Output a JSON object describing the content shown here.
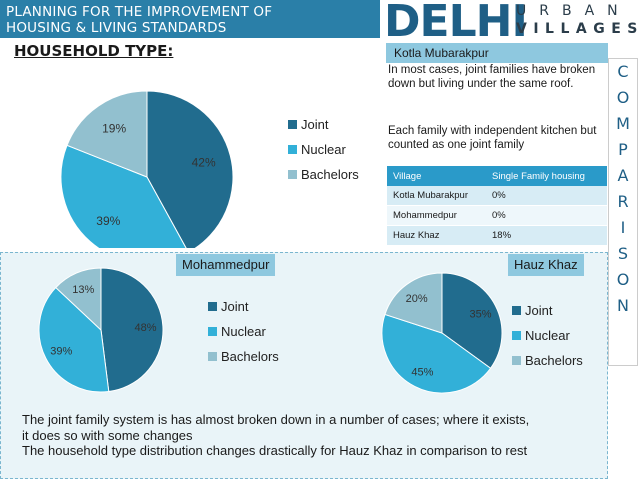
{
  "header": {
    "title_line1": "PLANNING FOR THE IMPROVEMENT OF",
    "title_line2": "HOUSING & LIVING STANDARDS",
    "logo_main": "DELHI",
    "logo_sub1": "URBAN",
    "logo_sub2": "VILLAGES"
  },
  "subtitle": "HOUSEHOLD TYPE:",
  "kotla": {
    "label": "Kotla Mubarakpur",
    "note1": "In most cases, joint families have broken down but living under the same roof.",
    "note2": "Each family with independent kitchen but counted as one joint family"
  },
  "table": {
    "headers": [
      "Village",
      "Single Family housing"
    ],
    "rows": [
      [
        "Kotla Mubarakpur",
        "0%"
      ],
      [
        "Mohammedpur",
        "0%"
      ],
      [
        "Hauz Khaz",
        "18%"
      ]
    ]
  },
  "side_letters": [
    "C",
    "O",
    "M",
    "P",
    "A",
    "R",
    "I",
    "S",
    "O",
    "N"
  ],
  "colors": {
    "joint": "#216c8e",
    "nuclear": "#32b0d8",
    "bachelors": "#92c0cf",
    "header": "#2a7fa8"
  },
  "chart_data": [
    {
      "type": "pie",
      "title": "Kotla Mubarakpur",
      "categories": [
        "Joint",
        "Nuclear",
        "Bachelors"
      ],
      "values": [
        42,
        39,
        19
      ],
      "data_labels": [
        "42%",
        "39%",
        "19%"
      ],
      "legend": "right"
    },
    {
      "type": "pie",
      "title": "Mohammedpur",
      "categories": [
        "Joint",
        "Nuclear",
        "Bachelors"
      ],
      "values": [
        48,
        39,
        13
      ],
      "data_labels": [
        "48%",
        "39%",
        "13%"
      ],
      "legend": "right"
    },
    {
      "type": "pie",
      "title": "Hauz Khaz",
      "categories": [
        "Joint",
        "Nuclear",
        "Bachelors"
      ],
      "values": [
        35,
        45,
        20
      ],
      "data_labels": [
        "35%",
        "45%",
        "20%"
      ],
      "legend": "right"
    }
  ],
  "footer": {
    "line1": "The joint family system is has almost broken down in a number of cases; where it exists,",
    "line2": "it does so with some changes",
    "line3": "The household type distribution changes drastically for Hauz Khaz in comparison to rest"
  }
}
